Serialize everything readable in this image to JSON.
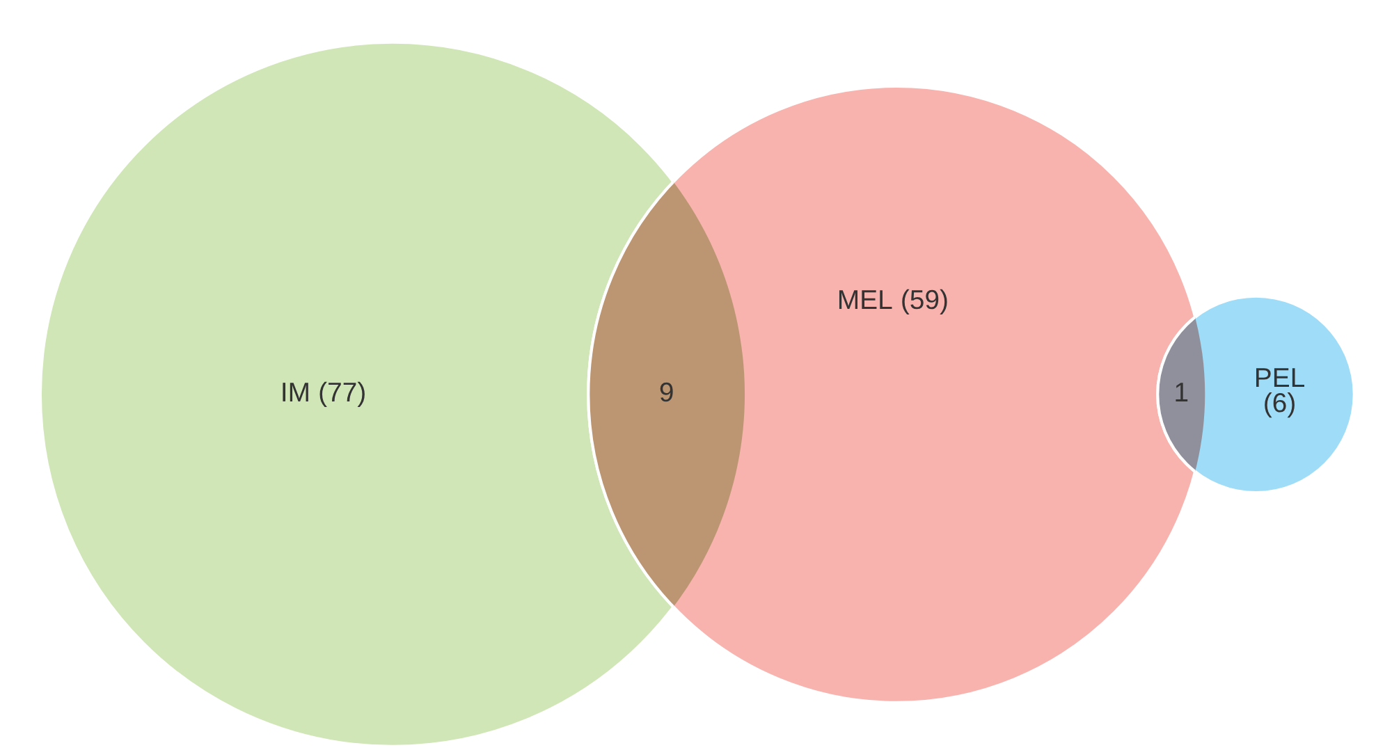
{
  "chart_data": {
    "type": "other",
    "categories": [
      "IM",
      "MEL",
      "PEL"
    ],
    "values": [
      77,
      59,
      6
    ],
    "value_labels": [
      "(77)",
      "(59)",
      "(6)"
    ],
    "colors": [
      "#d0e6b6",
      "#f8b3ae",
      "#9fdcf7"
    ],
    "annotations": [
      "9",
      "1"
    ]
  }
}
